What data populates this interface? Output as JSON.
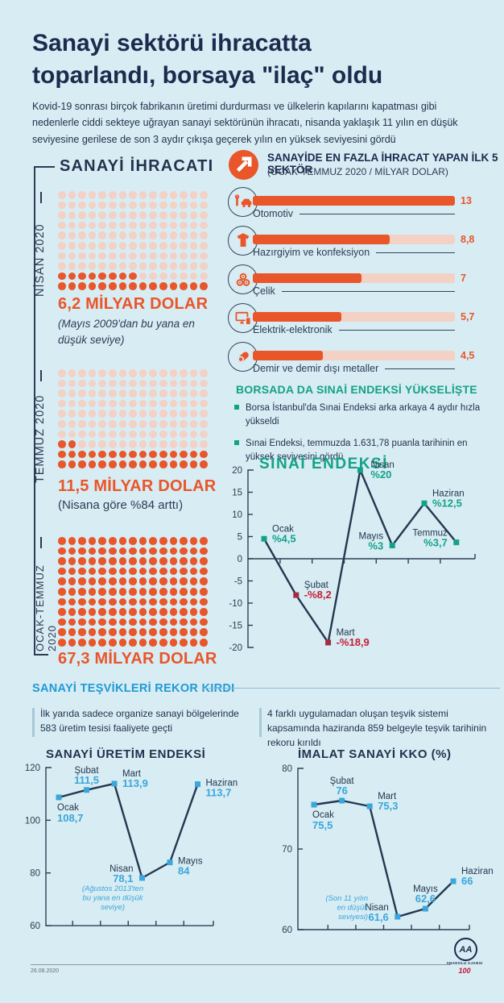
{
  "header": {
    "title": "Sanayi sektörü ihracatta toparlandı, borsaya \"ilaç\" oldu",
    "intro": "Kovid-19 sonrası birçok fabrikanın üretimi durdurması ve ülkelerin kapılarını kapatması gibi nedenlerle ciddi sekteye uğrayan sanayi sektörünün ihracatı, nisanda yaklaşık 11 yılın en düşük seviyesine gerilese de son 3 aydır çıkışa geçerek yılın en yüksek seviyesini gördü"
  },
  "borsa": {
    "title": "BORSADA DA SINAİ ENDEKSİ YÜKSELİŞTE",
    "bullets": [
      "Borsa İstanbul'da Sınai Endeksi arka arkaya 4 aydır hızla yükseldi",
      "Sınai Endeksi, temmuzda 1.631,78 puanla tarihinin en yüksek seviyesini gördü"
    ]
  },
  "tesvik": {
    "title": "SANAYİ TEŞVİKLERİ REKOR KIRDI",
    "notes": [
      "İlk yarıda sadece organize sanayi bölgelerinde 583 üretim tesisi faaliyete geçti",
      "4 farklı uygulamadan oluşan teşvik sistemi kapsamında haziranda 859 belgeyle teşvik tarihinin rekoru kırıldı"
    ]
  },
  "footer": {
    "date": "26.08.2020",
    "logo_initials": "AA",
    "agency": "ANADOLU AJANSI",
    "centenary": "100"
  },
  "colors": {
    "background": "#d8ecf3",
    "navy": "#1b2b4e",
    "orange": "#e8562a",
    "pink": "#f3d1c5",
    "teal": "#13a287",
    "blue_heading": "#1f9ad6",
    "value_blue": "#3aa6db",
    "negative_red": "#c41f35"
  },
  "chart_data": [
    {
      "type": "bar",
      "title": "SANAYİDE EN FAZLA İHRACAT YAPAN İLK 5 SEKTÖR",
      "subtitle": "(OCAK-TEMMUZ 2020 / MİLYAR DOLAR)",
      "categories": [
        "Otomotiv",
        "Hazırgiyim ve konfeksiyon",
        "Çelik",
        "Elektrik-elektronik",
        "Demir ve demir dışı metaller"
      ],
      "values": [
        13,
        8.8,
        7,
        5.7,
        4.5
      ],
      "labels": [
        "13",
        "8,8",
        "7",
        "5,7",
        "4,5"
      ],
      "icons": [
        "car-wrench-icon",
        "tshirt-icon",
        "steel-coils-icon",
        "monitor-phone-icon",
        "metal-pipe-icon"
      ],
      "xlim": [
        0,
        13
      ],
      "bar_color": "#e8562a",
      "track_color": "#f3d1c5"
    },
    {
      "type": "line",
      "title": "SINAİ ENDEKSİ",
      "categories": [
        "Ocak",
        "Şubat",
        "Mart",
        "Nisan",
        "Mayıs",
        "Haziran",
        "Temmuz"
      ],
      "values": [
        4.5,
        -8.2,
        -18.9,
        20,
        3,
        12.5,
        3.7
      ],
      "labels": [
        "%4,5",
        "-%8,2",
        "-%18,9",
        "%20",
        "%3",
        "%12,5",
        "%3,7"
      ],
      "ylim": [
        -20,
        20
      ],
      "yticks": [
        20,
        15,
        10,
        5,
        0,
        -5,
        -10,
        -15,
        -20
      ],
      "baseline": 0,
      "label_pos": [
        "right",
        "right",
        "right",
        "peak-right",
        "left",
        "right",
        "left"
      ],
      "marker_colors": {
        "pos": "#13a287",
        "neg": "#a62a44"
      },
      "value_colors": {
        "pos": "#13a287",
        "neg": "#c41f35"
      }
    },
    {
      "type": "line",
      "title": "SANAYİ ÜRETİM ENDEKSİ",
      "categories": [
        "Ocak",
        "Şubat",
        "Mart",
        "Nisan",
        "Mayıs",
        "Haziran"
      ],
      "values": [
        108.7,
        111.5,
        113.9,
        78.1,
        84,
        113.7
      ],
      "labels": [
        "108,7",
        "111,5",
        "113,9",
        "78,1",
        "84",
        "113,7"
      ],
      "ylim": [
        60,
        120
      ],
      "yticks": [
        120,
        100,
        80,
        60
      ],
      "baseline": 60,
      "label_pos": [
        "below",
        "above",
        "right",
        "left",
        "right-low",
        "right-low"
      ],
      "marker_color": "#3aa6db",
      "value_color": "#3aa6db",
      "note_lines": [
        "(Ağustos 2013'ten",
        "bu yana en düşük",
        "seviye)"
      ]
    },
    {
      "type": "line",
      "title": "İMALAT SANAYİ KKO (%)",
      "categories": [
        "Ocak",
        "Şubat",
        "Mart",
        "Nisan",
        "Mayıs",
        "Haziran"
      ],
      "values": [
        75.5,
        76,
        75.3,
        61.6,
        62.6,
        66
      ],
      "labels": [
        "75,5",
        "76",
        "75,3",
        "61,6",
        "62,6",
        "66"
      ],
      "ylim": [
        60,
        80
      ],
      "yticks": [
        80,
        70,
        60
      ],
      "baseline": 60,
      "label_pos": [
        "below",
        "above",
        "right",
        "left",
        "above",
        "right"
      ],
      "marker_color": "#3aa6db",
      "value_color": "#3aa6db",
      "note_lines": [
        "(Son 11 yılın",
        "en düşük",
        "seviyesi)"
      ]
    },
    {
      "type": "pictogram",
      "title": "SANAYİ İHRACATI",
      "periods": [
        {
          "label": "NİSAN 2020",
          "value": 6.2,
          "value_label": "6,2 MİLYAR DOLAR",
          "note": "(Mayıs 2009'dan bu yana en düşük seviye)",
          "rows": 10,
          "cols": 15,
          "filled": 23
        },
        {
          "label": "TEMMUZ 2020",
          "value": 11.5,
          "value_label": "11,5 MİLYAR DOLAR",
          "note": "(Nisana göre %84 arttı)",
          "rows": 10,
          "cols": 15,
          "filled": 32
        },
        {
          "label": "OCAK-TEMMUZ 2020",
          "value": 67.3,
          "value_label": "67,3 MİLYAR DOLAR",
          "note": "",
          "rows": 11,
          "cols": 15,
          "filled": 165
        }
      ]
    }
  ]
}
